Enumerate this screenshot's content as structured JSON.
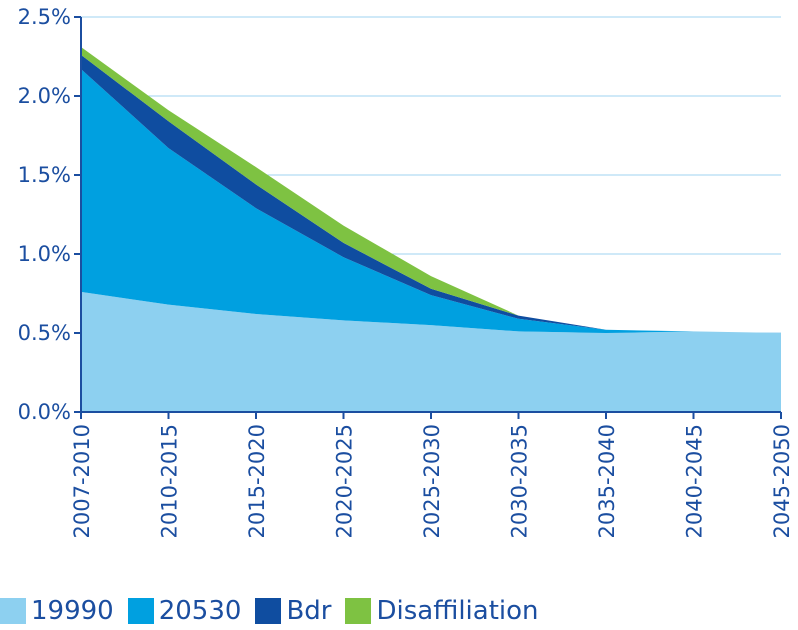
{
  "chart_data": {
    "type": "area",
    "stacked": true,
    "categories": [
      "2007-2010",
      "2010-2015",
      "2015-2020",
      "2020-2025",
      "2025-2030",
      "2030-2035",
      "2035-2040",
      "2040-2045",
      "2045-2050"
    ],
    "series": [
      {
        "name": "19990",
        "color": "#8dd0f0",
        "values": [
          0.76,
          0.68,
          0.62,
          0.58,
          0.55,
          0.51,
          0.5,
          0.51,
          0.5
        ]
      },
      {
        "name": "20530",
        "color": "#00a0e0",
        "values": [
          1.41,
          0.99,
          0.67,
          0.4,
          0.19,
          0.08,
          0.02,
          0.0,
          0.0
        ]
      },
      {
        "name": "Bdr",
        "color": "#0f4da0",
        "values": [
          0.09,
          0.17,
          0.15,
          0.09,
          0.04,
          0.02,
          0.0,
          0.0,
          0.0
        ]
      },
      {
        "name": "Disaffiliation",
        "color": "#7ec242",
        "values": [
          0.05,
          0.07,
          0.11,
          0.11,
          0.08,
          0.0,
          0.0,
          0.0,
          0.0
        ]
      }
    ],
    "y_ticks": [
      "0.0%",
      "0.5%",
      "1.0%",
      "1.5%",
      "2.0%",
      "2.5%"
    ],
    "ylim": [
      0,
      2.5
    ],
    "grid": true,
    "legend_position": "bottom-left",
    "axis_color": "#1b4ea0",
    "grid_color": "#9fd3f0"
  }
}
